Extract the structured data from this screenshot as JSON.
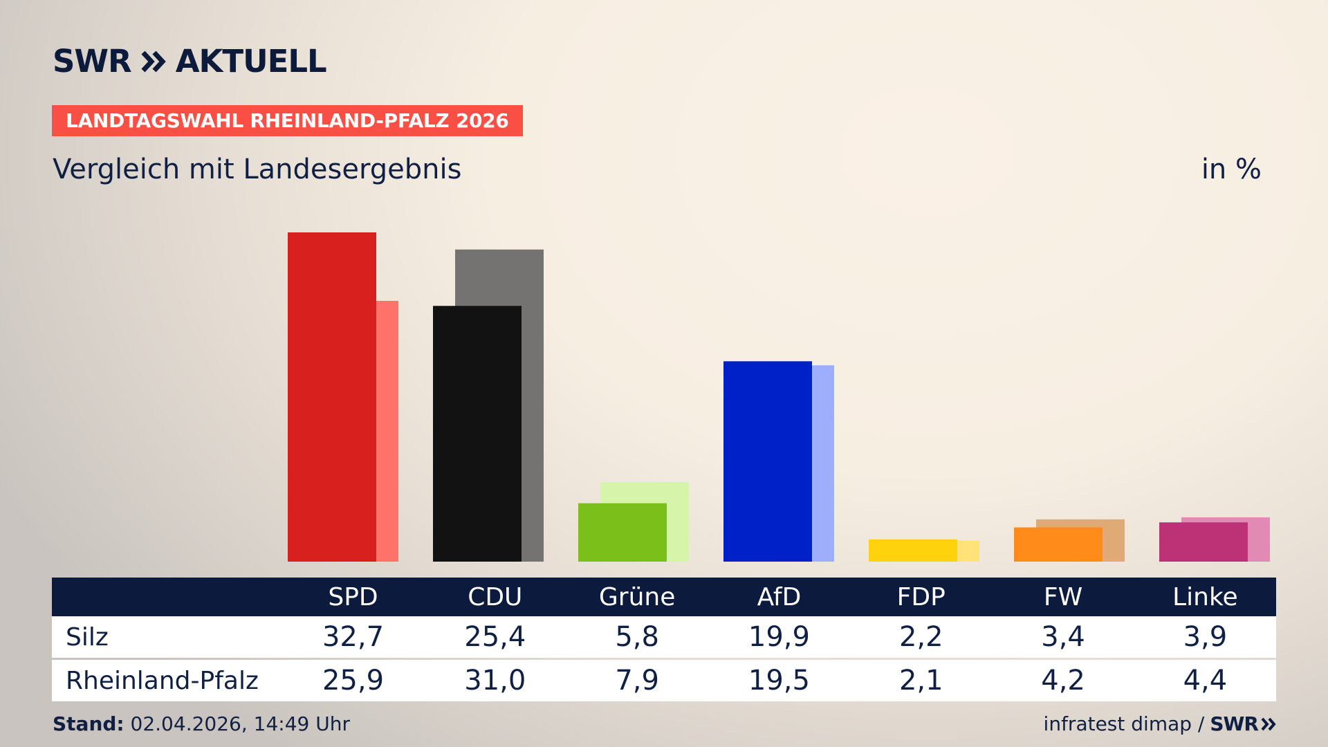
{
  "brand": {
    "logo_left": "SWR",
    "logo_right": "AKTUELL",
    "footer_logo": "SWR"
  },
  "topic_label": "LANDTAGSWAHL RHEINLAND-PFALZ 2026",
  "subtitle": "Vergleich mit Landesergebnis",
  "unit": "in %",
  "table": {
    "headers": [
      "SPD",
      "CDU",
      "Grüne",
      "AfD",
      "FDP",
      "FW",
      "Linke"
    ],
    "rows": [
      {
        "label": "Silz",
        "values": [
          "32,7",
          "25,4",
          "5,8",
          "19,9",
          "2,2",
          "3,4",
          "3,9"
        ]
      },
      {
        "label": "Rheinland-Pfalz",
        "values": [
          "25,9",
          "31,0",
          "7,9",
          "19,5",
          "2,1",
          "4,2",
          "4,4"
        ]
      }
    ]
  },
  "footer": {
    "stand_label": "Stand:",
    "stand_value": "02.04.2026, 14:49 Uhr",
    "source": "infratest dimap /"
  },
  "colors": {
    "topic_bg": "#fa4f44",
    "navy": "#0c1b3d",
    "parties": {
      "SPD": {
        "primary": "#d8201f",
        "secondary": "#ff7269"
      },
      "CDU": {
        "primary": "#121212",
        "secondary": "#747372"
      },
      "Grüne": {
        "primary": "#7bbf1b",
        "secondary": "#d6f5aa"
      },
      "AfD": {
        "primary": "#0021c8",
        "secondary": "#9fadfd"
      },
      "FDP": {
        "primary": "#ffd20e",
        "secondary": "#ffe278"
      },
      "FW": {
        "primary": "#ff8c1a",
        "secondary": "#e0aa76"
      },
      "Linke": {
        "primary": "#bd3276",
        "secondary": "#e08ab4"
      }
    }
  },
  "chart_data": {
    "type": "bar",
    "categories": [
      "SPD",
      "CDU",
      "Grüne",
      "AfD",
      "FDP",
      "FW",
      "Linke"
    ],
    "series": [
      {
        "name": "Silz",
        "values": [
          32.7,
          25.4,
          5.8,
          19.9,
          2.2,
          3.4,
          3.9
        ]
      },
      {
        "name": "Rheinland-Pfalz",
        "values": [
          25.9,
          31.0,
          7.9,
          19.5,
          2.1,
          4.2,
          4.4
        ]
      }
    ],
    "ylim": [
      0,
      32.7
    ],
    "grid": false,
    "legend": "none"
  }
}
